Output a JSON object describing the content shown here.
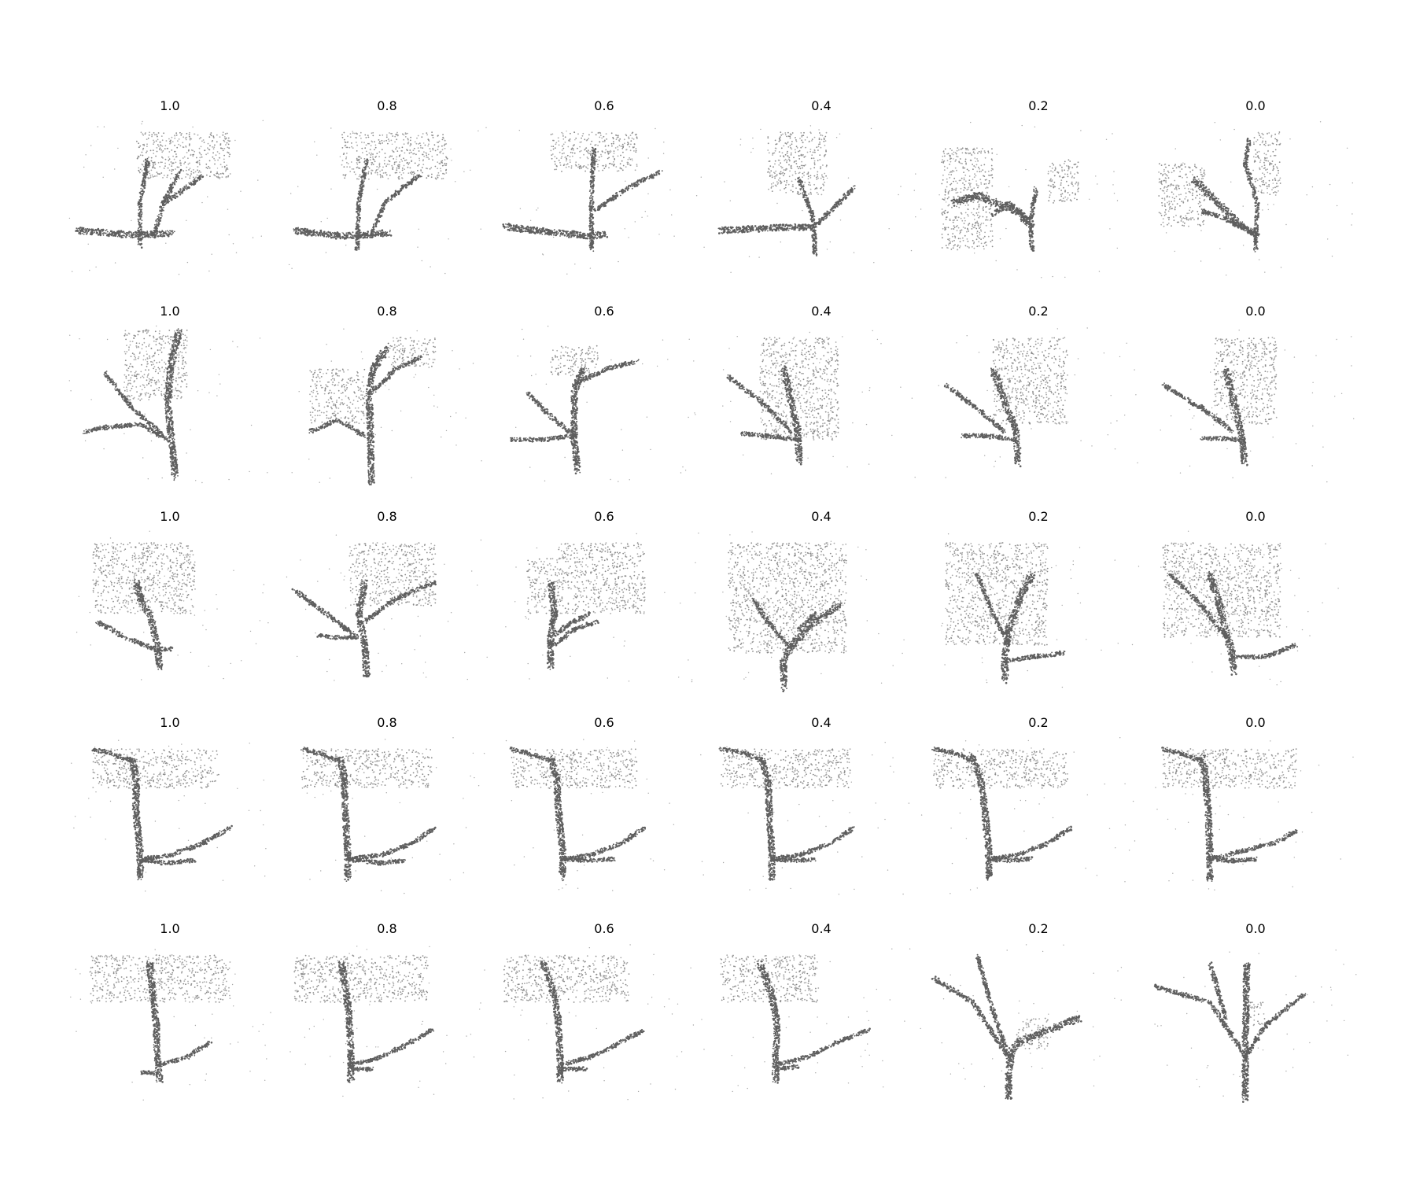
{
  "figure": {
    "rows": [
      {
        "titles": [
          "1.0",
          "0.8",
          "0.6",
          "0.4",
          "0.2",
          "0.0"
        ]
      },
      {
        "titles": [
          "1.0",
          "0.8",
          "0.6",
          "0.4",
          "0.2",
          "0.0"
        ]
      },
      {
        "titles": [
          "1.0",
          "0.8",
          "0.6",
          "0.4",
          "0.2",
          "0.0"
        ]
      },
      {
        "titles": [
          "1.0",
          "0.8",
          "0.6",
          "0.4",
          "0.2",
          "0.0"
        ]
      },
      {
        "titles": [
          "1.0",
          "0.8",
          "0.6",
          "0.4",
          "0.2",
          "0.0"
        ]
      }
    ],
    "point_color_dark": "#5f5f5f",
    "point_color_light": "#a8a8a8",
    "background": "#ffffff"
  }
}
